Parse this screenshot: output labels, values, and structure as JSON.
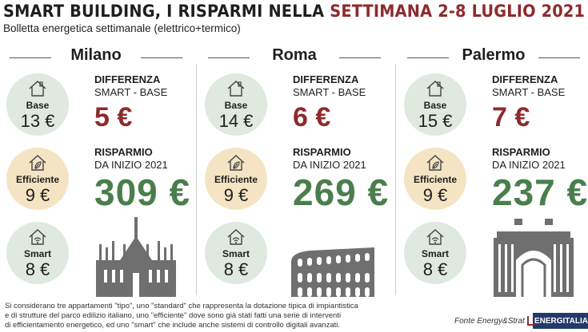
{
  "header": {
    "title_main": "SMART BUILDING, I RISPARMI NELLA ",
    "title_accent": "SETTIMANA 2-8 LUGLIO 2021",
    "subtitle": "Bolletta energetica settimanale (elettrico+termico)"
  },
  "labels": {
    "base": "Base",
    "efficiente": "Efficiente",
    "smart": "Smart",
    "diff_line1": "DIFFERENZA",
    "diff_line2": "SMART - BASE",
    "risp_line1": "RISPARMIO",
    "risp_line2": "DA INIZIO 2021"
  },
  "cities": [
    {
      "name": "Milano",
      "base": "13 €",
      "efficiente": "9 €",
      "smart": "8 €",
      "differenza": "5 €",
      "risparmio": "309 €"
    },
    {
      "name": "Roma",
      "base": "14 €",
      "efficiente": "9 €",
      "smart": "8 €",
      "differenza": "6 €",
      "risparmio": "269 €"
    },
    {
      "name": "Palermo",
      "base": "15 €",
      "efficiente": "9 €",
      "smart": "8 €",
      "differenza": "7 €",
      "risparmio": "237 €"
    }
  ],
  "colors": {
    "accent_red": "#8f2a2e",
    "accent_green": "#4a7e4c",
    "circle_green": "#dfe9e0",
    "circle_beige": "#f5e4c3"
  },
  "icons": {
    "base": "house-icon",
    "efficiente": "house-leaf-icon",
    "smart": "house-wifi-icon"
  },
  "footer": {
    "note_line1": "Si considerano tre appartamenti \"tipo\", uno \"standard\" che rappresenta la dotazione tipica di impiantistica",
    "note_line2": "e di strutture del parco edilizio italiano, uno \"efficiente\" dove sono già stati fatti una serie di interventi",
    "note_line3": "di efficientamento energetico, ed uno \"smart\" che include anche sistemi di controllo digitali avanzati.",
    "fonte": "Fonte Energy&Strategy",
    "logo": "ENERGITALIA"
  }
}
